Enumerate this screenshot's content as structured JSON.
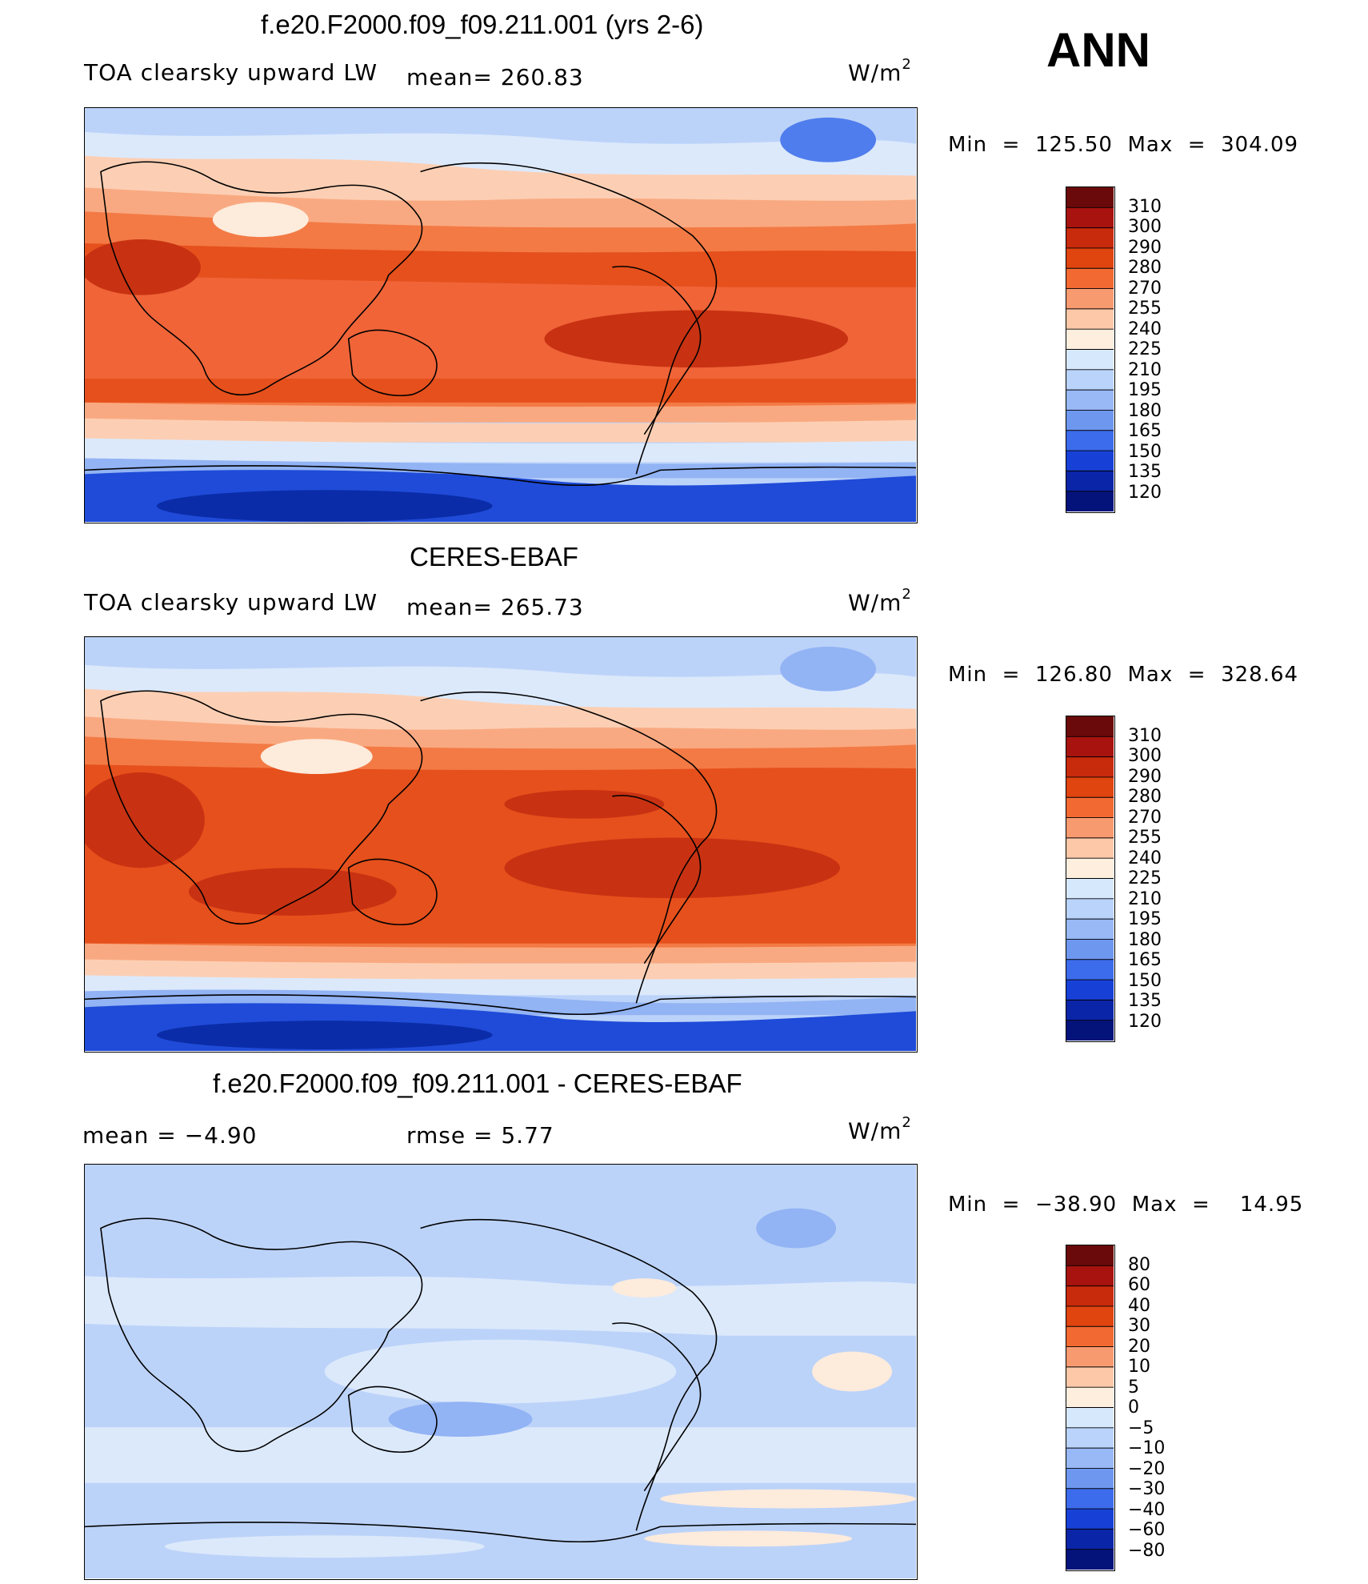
{
  "season": "ANN",
  "panels": [
    {
      "id": "model",
      "title": "f.e20.F2000.f09_f09.211.001 (yrs 2-6)",
      "left_label": "TOA clearsky upward LW",
      "stat_label": "mean= 260.83",
      "units": "W/m",
      "units_sup": "2",
      "min_max": "Min  =  125.50  Max  =  304.09"
    },
    {
      "id": "obs",
      "title": "CERES-EBAF",
      "left_label": "TOA clearsky upward LW",
      "stat_label": "mean= 265.73",
      "units": "W/m",
      "units_sup": "2",
      "min_max": "Min  =  126.80  Max  =  328.64"
    },
    {
      "id": "diff",
      "title": "f.e20.F2000.f09_f09.211.001 - CERES-EBAF",
      "left_label": "mean  =    −4.90",
      "stat_label": "rmse  =     5.77",
      "units": "W/m",
      "units_sup": "2",
      "min_max": "Min  =  −38.90  Max  =    14.95"
    }
  ],
  "chart_data": [
    {
      "type": "heatmap",
      "title": "f.e20.F2000.f09_f09.211.001 (yrs 2-6)",
      "variable": "TOA clearsky upward LW",
      "units": "W/m2",
      "mean": 260.83,
      "min": 125.5,
      "max": 304.09,
      "colorbar_levels": [
        310,
        300,
        290,
        280,
        270,
        255,
        240,
        225,
        210,
        195,
        180,
        165,
        150,
        135,
        120
      ]
    },
    {
      "type": "heatmap",
      "title": "CERES-EBAF",
      "variable": "TOA clearsky upward LW",
      "units": "W/m2",
      "mean": 265.73,
      "min": 126.8,
      "max": 328.64,
      "colorbar_levels": [
        310,
        300,
        290,
        280,
        270,
        255,
        240,
        225,
        210,
        195,
        180,
        165,
        150,
        135,
        120
      ]
    },
    {
      "type": "heatmap",
      "title": "f.e20.F2000.f09_f09.211.001 - CERES-EBAF",
      "units": "W/m2",
      "mean": -4.9,
      "rmse": 5.77,
      "min": -38.9,
      "max": 14.95,
      "colorbar_levels": [
        "80",
        "60",
        "40",
        "30",
        "20",
        "10",
        "5",
        "0",
        "−5",
        "−10",
        "−20",
        "−30",
        "−40",
        "−60",
        "−80"
      ]
    }
  ],
  "colorbar_colors": [
    "#6a0a0a",
    "#a8130f",
    "#c82a0c",
    "#e0440f",
    "#f26a32",
    "#f89a70",
    "#fcc8a8",
    "#fdeede",
    "#d6e8fb",
    "#b9d3fb",
    "#98b8f6",
    "#6e97f0",
    "#3c6cec",
    "#1741d6",
    "#0a25a8",
    "#03137a"
  ],
  "colors": {
    "deep_red": "#c83212",
    "red": "#e6501c",
    "orange": "#f37a45",
    "salmon": "#f9a981",
    "peach": "#fccfb4",
    "cream": "#fdebdc",
    "pale_blue": "#dce9fb",
    "light_blue": "#bcd3f9",
    "mid_blue": "#92b3f4",
    "blue": "#4f7ded",
    "dark_blue": "#1f4bd8",
    "navy": "#0b2ca8"
  }
}
